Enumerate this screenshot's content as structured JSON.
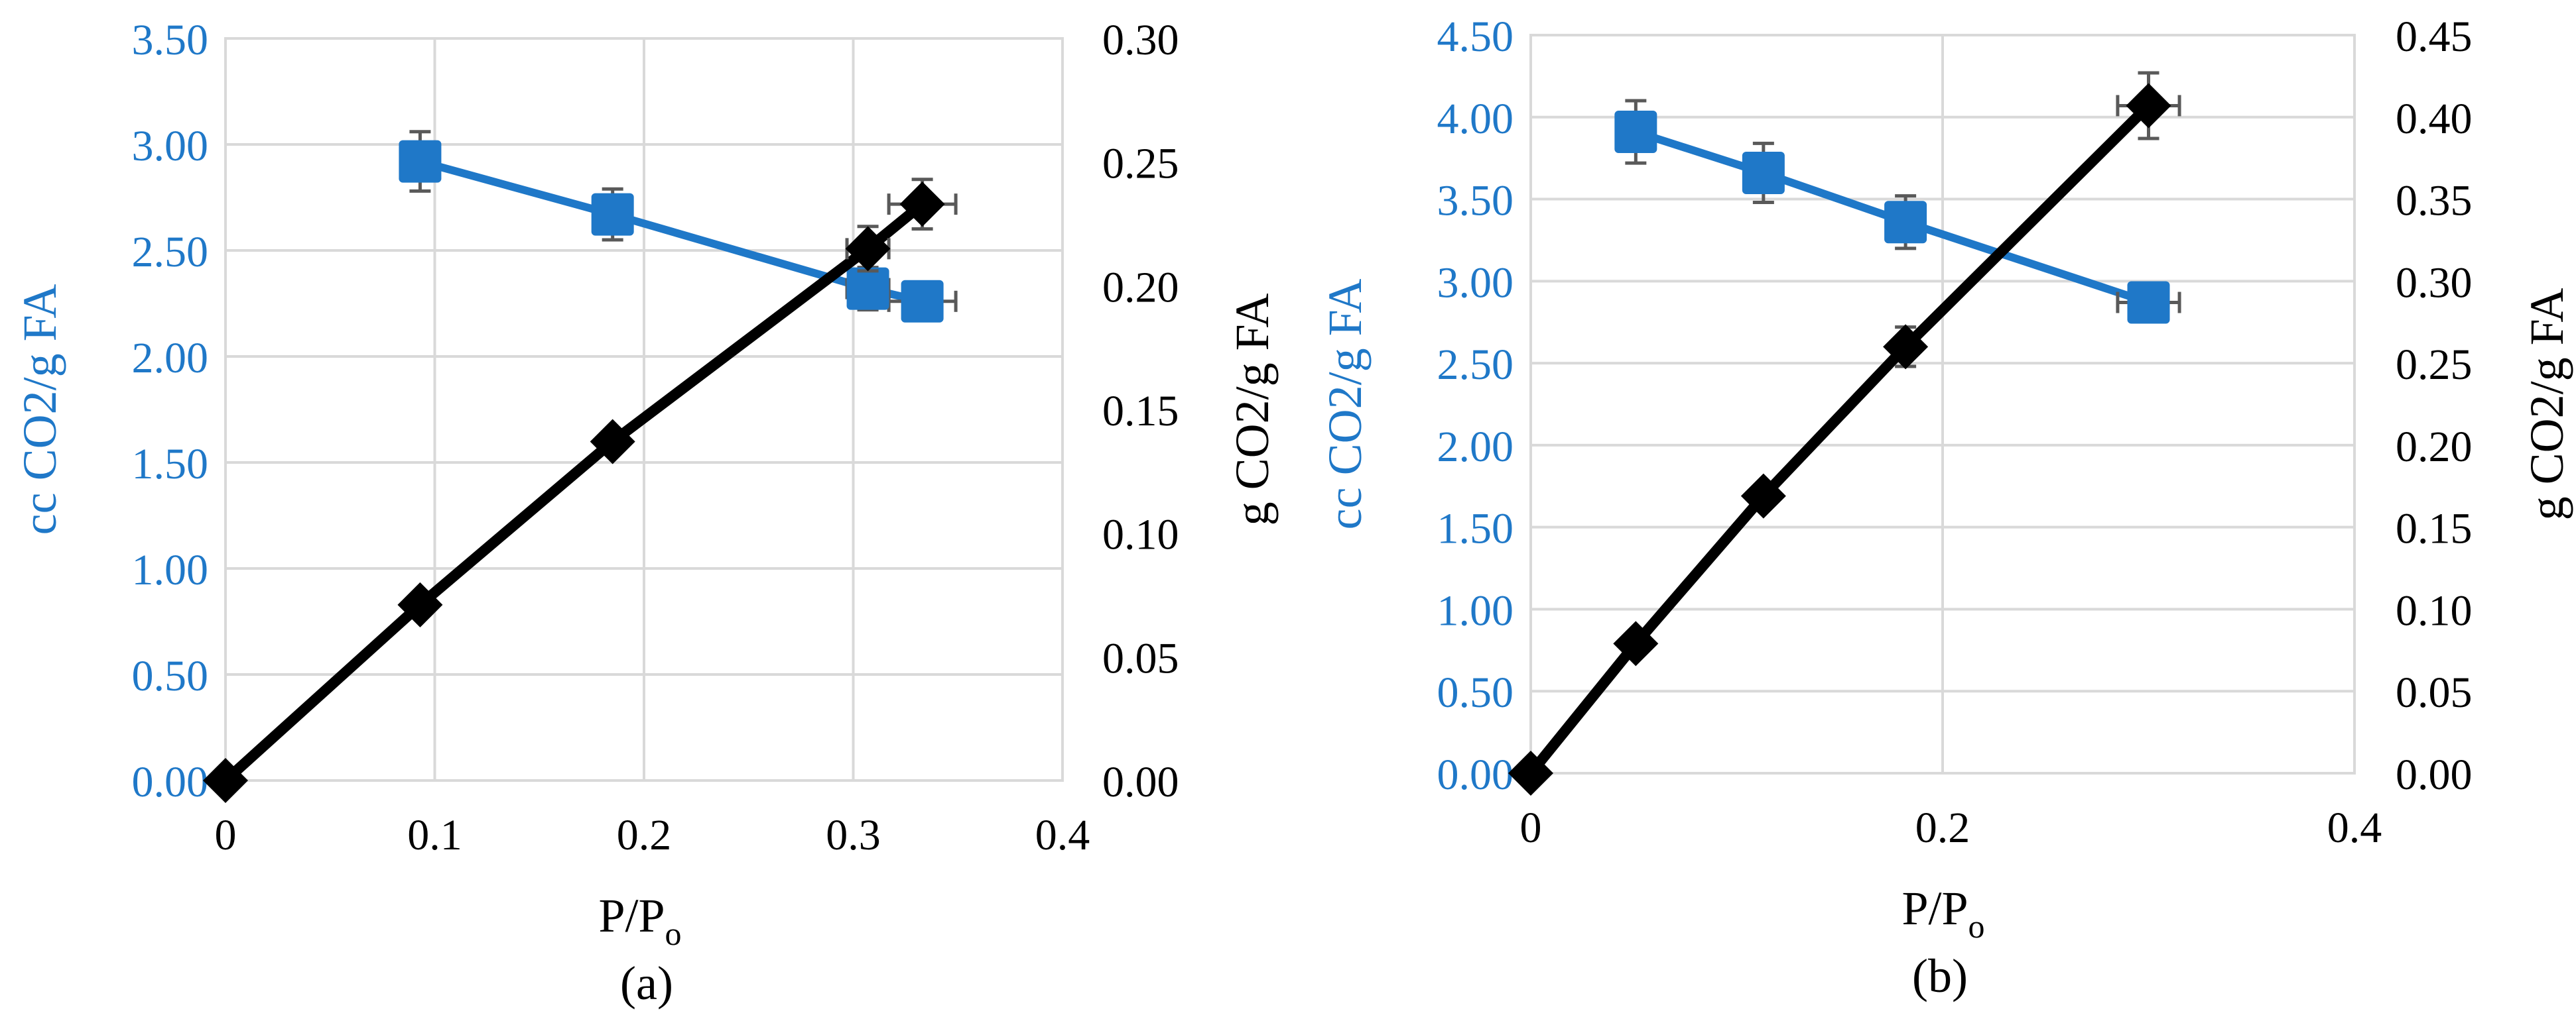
{
  "colors": {
    "blue": "#1f78c8",
    "black": "#000000",
    "grid": "#d9d9d9",
    "errorbar": "#595959"
  },
  "chart_data": [
    {
      "type": "line",
      "caption": "(a)",
      "xlabel_main": "P/P",
      "xlabel_sub": "o",
      "ylabel_left": "cc CO2/g FA",
      "ylabel_right": "g CO2/g FA",
      "xlim": [
        0,
        0.4
      ],
      "xticks": [
        0,
        0.1,
        0.2,
        0.3,
        0.4
      ],
      "xtick_labels": [
        "0",
        "0.1",
        "0.2",
        "0.3",
        "0.4"
      ],
      "ylim_left": [
        0,
        3.5
      ],
      "yticks_left": [
        "0.00",
        "0.50",
        "1.00",
        "1.50",
        "2.00",
        "2.50",
        "3.00",
        "3.50"
      ],
      "ylim_right": [
        0,
        0.3
      ],
      "yticks_right": [
        "0.00",
        "0.05",
        "0.10",
        "0.15",
        "0.20",
        "0.25",
        "0.30"
      ],
      "grid": true,
      "series": [
        {
          "axis": "left",
          "color": "blue",
          "marker": "square",
          "x": [
            0.093,
            0.185,
            0.307,
            0.333
          ],
          "y": [
            2.92,
            2.67,
            2.32,
            2.26
          ],
          "yerr": [
            0.14,
            0.12,
            0.1,
            0.06
          ],
          "xerr": [
            0,
            0,
            0.01,
            0.016
          ]
        },
        {
          "axis": "right",
          "color": "black",
          "marker": "diamond",
          "x": [
            0,
            0.093,
            0.185,
            0.307,
            0.333
          ],
          "y": [
            0,
            0.071,
            0.137,
            0.215,
            0.233
          ],
          "yerr": [
            0,
            0,
            0.004,
            0.009,
            0.01
          ],
          "xerr": [
            0,
            0,
            0,
            0.01,
            0.016
          ]
        }
      ]
    },
    {
      "type": "line",
      "caption": "(b)",
      "xlabel_main": "P/P",
      "xlabel_sub": "o",
      "ylabel_left": "cc CO2/g FA",
      "ylabel_right": "g CO2/g FA",
      "xlim": [
        0,
        0.4
      ],
      "xticks": [
        0,
        0.2,
        0.4
      ],
      "xtick_labels": [
        "0",
        "0.2",
        "0.4"
      ],
      "ylim_left": [
        0,
        4.5
      ],
      "yticks_left": [
        "0.00",
        "0.50",
        "1.00",
        "1.50",
        "2.00",
        "2.50",
        "3.00",
        "3.50",
        "4.00",
        "4.50"
      ],
      "ylim_right": [
        0,
        0.45
      ],
      "yticks_right": [
        "0.00",
        "0.05",
        "0.10",
        "0.15",
        "0.20",
        "0.25",
        "0.30",
        "0.35",
        "0.40",
        "0.45"
      ],
      "grid": true,
      "series": [
        {
          "axis": "left",
          "color": "blue",
          "marker": "square",
          "x": [
            0.051,
            0.113,
            0.182,
            0.3
          ],
          "y": [
            3.91,
            3.66,
            3.36,
            2.87
          ],
          "yerr": [
            0.19,
            0.18,
            0.16,
            0.05
          ],
          "xerr": [
            0,
            0,
            0,
            0.015
          ]
        },
        {
          "axis": "right",
          "color": "black",
          "marker": "diamond",
          "x": [
            0,
            0.051,
            0.113,
            0.182,
            0.3
          ],
          "y": [
            0,
            0.079,
            0.169,
            0.26,
            0.407
          ],
          "yerr": [
            0,
            0,
            0.003,
            0.012,
            0.02
          ],
          "xerr": [
            0,
            0,
            0,
            0,
            0.015
          ]
        }
      ]
    }
  ]
}
